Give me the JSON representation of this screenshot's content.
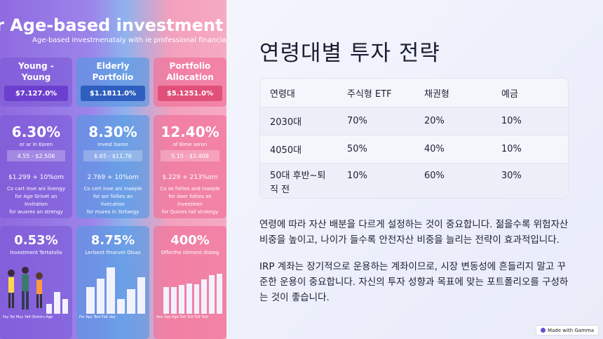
{
  "infographic": {
    "title": "r Age-based investment strateg",
    "subtitle": "Age-based investmenataly with ie professional financial.",
    "columns": [
      {
        "header": "Young -\nYoung",
        "pill": "$7.127.0%",
        "rate": "6.30%",
        "rate_caption": "or ar in Koren",
        "range": "4.55 - $2.506",
        "amount": "$1.299 + 10%om",
        "desc": "Co cart inve ani linengy\nfor Age Grivet an Invitation\nfor wuores an strengy",
        "stat": "0.53%",
        "stat_caption": "Investment Tertatolio",
        "x_labels": "Fay  Tet  Muy  Yalt  Dteters  Age"
      },
      {
        "header": "Elderly\nPortfolio",
        "pill": "$1.1811.0%",
        "rate": "8.30%",
        "rate_caption": "Invest baron",
        "range": "$.65 - $11.76",
        "amount": "2.769 + 10%om",
        "desc": "Co cert inve ani inaeple\nfor sor follies an livecation\nfor mures in Strtaegy",
        "stat": "8.75%",
        "stat_caption": "Lerlsent finarvet Olvas",
        "x_labels": "Fer  Apy  Text  Falt  day"
      },
      {
        "header": "Portfolio\nAllocation",
        "pill": "$5.1251.0%",
        "rate": "12.40%",
        "rate_caption": "of Bime seron",
        "range": "5.15 - $2.408",
        "amount": "$.229 + 213%om",
        "desc": "Co se follies and inaeple\nfor daer follies an investleen\nfor Quives tail strategy",
        "stat": "400%",
        "stat_caption": "Offerthe oltment diateg",
        "x_labels": "Nov  Ags  Age  Tult  Tult  Tult  Yutr"
      }
    ],
    "bars_middle": [
      0.55,
      0.72,
      0.95,
      0.3,
      0.5,
      0.75
    ],
    "bars_right": [
      0.55,
      0.55,
      0.58,
      0.62,
      0.6,
      0.7,
      0.78,
      0.82
    ],
    "bars_left": [
      0.2,
      0.45,
      0.3
    ]
  },
  "slide": {
    "title": "연령대별 투자 전략",
    "table_headers": [
      "연령대",
      "주식형 ETF",
      "채권형",
      "예금"
    ],
    "table_rows": [
      [
        "2030대",
        "70%",
        "20%",
        "10%"
      ],
      [
        "4050대",
        "50%",
        "40%",
        "10%"
      ],
      [
        "50대 후반~퇴직 전",
        "10%",
        "60%",
        "30%"
      ]
    ],
    "paragraph1": "연령에 따라 자산 배분을 다르게 설정하는 것이 중요합니다. 젊을수록 위험자산 비중을 높이고, 나이가 들수록 안전자산 비중을 늘리는 전략이 효과적입니다.",
    "paragraph2": "IRP 계좌는 장기적으로 운용하는 계좌이므로, 시장 변동성에 흔들리지 말고 꾸준한 운용이 중요합니다. 자신의 투자 성향과 목표에 맞는 포트폴리오를 구성하는 것이 좋습니다."
  },
  "badge": {
    "label": "Made with Gamma"
  },
  "colors": {
    "accent": "#6b4bd8",
    "text": "#1c1f33"
  }
}
